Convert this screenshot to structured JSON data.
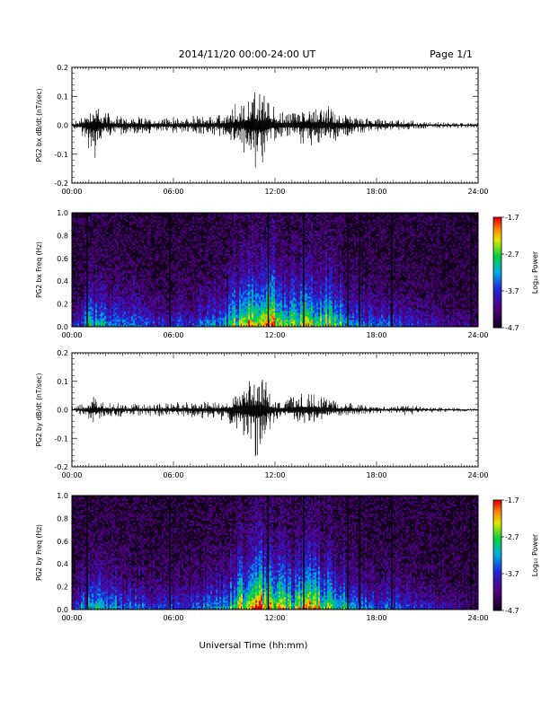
{
  "header": {
    "title": "2014/11/20  00:00-24:00 UT",
    "page": "Page 1/1"
  },
  "xlabel": "Universal Time (hh:mm)",
  "chart_data": [
    {
      "type": "line",
      "ylabel": "PG2 bx dB/dt (nT/sec)",
      "xlim": [
        0,
        24
      ],
      "ylim": [
        -0.2,
        0.2
      ],
      "xticks": [
        "00:00",
        "06:00",
        "12:00",
        "18:00",
        "24:00"
      ],
      "yticks": [
        "0.2",
        "0.1",
        "0.0",
        "-0.1",
        "-0.2"
      ],
      "envelope": {
        "x_hours": [
          0,
          0.5,
          1,
          1.3,
          1.7,
          2,
          3,
          4,
          5,
          6,
          7,
          8,
          9,
          10,
          10.5,
          11,
          11.5,
          12,
          12.5,
          13,
          14,
          15,
          16,
          17,
          18,
          19,
          20,
          21,
          22,
          23,
          24
        ],
        "upper": [
          0.01,
          0.03,
          0.08,
          0.1,
          0.07,
          0.05,
          0.04,
          0.03,
          0.03,
          0.03,
          0.035,
          0.04,
          0.045,
          0.1,
          0.14,
          0.15,
          0.12,
          0.07,
          0.05,
          0.06,
          0.09,
          0.08,
          0.05,
          0.03,
          0.025,
          0.025,
          0.02,
          0.015,
          0.012,
          0.01,
          0.01
        ],
        "lower": [
          -0.01,
          -0.03,
          -0.1,
          -0.15,
          -0.08,
          -0.05,
          -0.04,
          -0.035,
          -0.035,
          -0.03,
          -0.035,
          -0.04,
          -0.045,
          -0.09,
          -0.13,
          -0.18,
          -0.12,
          -0.06,
          -0.05,
          -0.06,
          -0.08,
          -0.07,
          -0.05,
          -0.03,
          -0.025,
          -0.025,
          -0.02,
          -0.015,
          -0.012,
          -0.01,
          -0.01
        ]
      }
    },
    {
      "type": "heatmap",
      "ylabel": "PG2 bx Freq (Hz)",
      "xlim": [
        0,
        24
      ],
      "ylim": [
        0,
        1.0
      ],
      "xticks": [
        "00:00",
        "06:00",
        "12:00",
        "18:00",
        "24:00"
      ],
      "yticks": [
        "1.0",
        "0.8",
        "0.6",
        "0.4",
        "0.2",
        "0.0"
      ],
      "colorbar": {
        "label": "Log₁₀ Power",
        "ticks": [
          "-1.7",
          "-2.7",
          "-3.7",
          "-4.7"
        ],
        "range": [
          -4.7,
          -1.7
        ]
      },
      "activity": {
        "x_hours": [
          0,
          1,
          2,
          3,
          4,
          5,
          6,
          7,
          8,
          9,
          10,
          11,
          12,
          13,
          14,
          15,
          16,
          17,
          18,
          19,
          20,
          21,
          22,
          23,
          24
        ],
        "intensity": [
          0.2,
          0.5,
          0.45,
          0.4,
          0.35,
          0.3,
          0.3,
          0.3,
          0.4,
          0.45,
          0.7,
          0.85,
          0.75,
          0.6,
          0.75,
          0.7,
          0.55,
          0.4,
          0.35,
          0.35,
          0.3,
          0.25,
          0.2,
          0.15,
          0.1
        ]
      },
      "gaps_hours": [
        0.9,
        5.8,
        11.6,
        13.7,
        16.3,
        17.0,
        18.9,
        23.6
      ]
    },
    {
      "type": "line",
      "ylabel": "PG2 by dB/dt (nT/sec)",
      "xlim": [
        0,
        24
      ],
      "ylim": [
        -0.2,
        0.2
      ],
      "xticks": [
        "00:00",
        "06:00",
        "12:00",
        "18:00",
        "24:00"
      ],
      "yticks": [
        "0.2",
        "0.1",
        "0.0",
        "-0.1",
        "-0.2"
      ],
      "envelope": {
        "x_hours": [
          0,
          0.5,
          1,
          1.3,
          1.7,
          2,
          3,
          4,
          5,
          6,
          7,
          8,
          9,
          10,
          10.5,
          11,
          11.5,
          12,
          12.5,
          13,
          14,
          15,
          16,
          17,
          18,
          19,
          20,
          21,
          22,
          23,
          24
        ],
        "upper": [
          0.01,
          0.02,
          0.04,
          0.05,
          0.04,
          0.03,
          0.025,
          0.025,
          0.025,
          0.03,
          0.03,
          0.035,
          0.04,
          0.09,
          0.13,
          0.14,
          0.1,
          0.05,
          0.04,
          0.05,
          0.08,
          0.06,
          0.03,
          0.02,
          0.015,
          0.015,
          0.02,
          0.01,
          0.01,
          0.008,
          0.005
        ],
        "lower": [
          -0.01,
          -0.02,
          -0.05,
          -0.07,
          -0.04,
          -0.03,
          -0.025,
          -0.025,
          -0.025,
          -0.03,
          -0.03,
          -0.035,
          -0.04,
          -0.1,
          -0.15,
          -0.19,
          -0.11,
          -0.05,
          -0.04,
          -0.05,
          -0.07,
          -0.05,
          -0.03,
          -0.02,
          -0.015,
          -0.015,
          -0.02,
          -0.01,
          -0.01,
          -0.008,
          -0.005
        ]
      }
    },
    {
      "type": "heatmap",
      "ylabel": "PG2 by Freq (Hz)",
      "xlim": [
        0,
        24
      ],
      "ylim": [
        0,
        1.0
      ],
      "xticks": [
        "00:00",
        "06:00",
        "12:00",
        "18:00",
        "24:00"
      ],
      "yticks": [
        "1.0",
        "0.8",
        "0.6",
        "0.4",
        "0.2",
        "0.0"
      ],
      "colorbar": {
        "label": "Log₁₀ Power",
        "ticks": [
          "-1.7",
          "-2.7",
          "-3.7",
          "-4.7"
        ],
        "range": [
          -4.7,
          -1.7
        ]
      },
      "activity": {
        "x_hours": [
          0,
          1,
          2,
          3,
          4,
          5,
          6,
          7,
          8,
          9,
          10,
          11,
          12,
          13,
          14,
          15,
          16,
          17,
          18,
          19,
          20,
          21,
          22,
          23,
          24
        ],
        "intensity": [
          0.2,
          0.5,
          0.45,
          0.4,
          0.35,
          0.3,
          0.3,
          0.3,
          0.4,
          0.45,
          0.7,
          0.85,
          0.75,
          0.6,
          0.75,
          0.7,
          0.55,
          0.4,
          0.35,
          0.35,
          0.3,
          0.25,
          0.2,
          0.15,
          0.1
        ]
      },
      "gaps_hours": [
        0.9,
        5.8,
        11.6,
        13.7,
        16.3,
        17.0,
        18.9,
        23.6
      ]
    }
  ]
}
